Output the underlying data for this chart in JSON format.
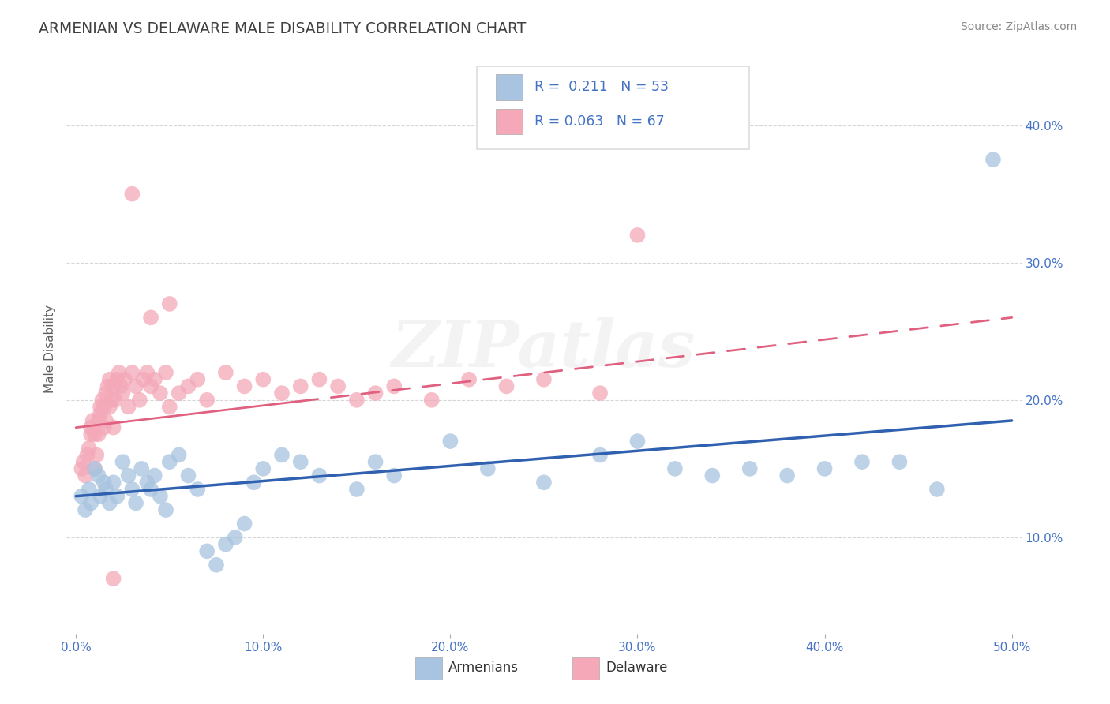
{
  "title": "ARMENIAN VS DELAWARE MALE DISABILITY CORRELATION CHART",
  "source": "Source: ZipAtlas.com",
  "ylabel": "Male Disability",
  "xlim": [
    -0.005,
    0.505
  ],
  "ylim": [
    0.03,
    0.445
  ],
  "xticks": [
    0.0,
    0.1,
    0.2,
    0.3,
    0.4,
    0.5
  ],
  "xtick_labels": [
    "0.0%",
    "10.0%",
    "20.0%",
    "30.0%",
    "40.0%",
    "50.0%"
  ],
  "yticks": [
    0.1,
    0.2,
    0.3,
    0.4
  ],
  "ytick_labels": [
    "10.0%",
    "20.0%",
    "30.0%",
    "40.0%"
  ],
  "blue_R": 0.211,
  "blue_N": 53,
  "pink_R": 0.063,
  "pink_N": 67,
  "legend_labels": [
    "Armenians",
    "Delaware"
  ],
  "blue_color": "#a8c4e0",
  "pink_color": "#f4a8b8",
  "blue_line_color": "#3060b0",
  "pink_line_color": "#e06080",
  "watermark": "ZIPatlas",
  "title_color": "#404040",
  "source_color": "#888888",
  "tick_color": "#4472c4",
  "ylabel_color": "#606060",
  "grid_color": "#cccccc",
  "legend_text_color": "#4472c4",
  "blue_trend_start_y": 0.13,
  "blue_trend_end_y": 0.185,
  "pink_trend_start_y": 0.18,
  "pink_trend_end_y": 0.26,
  "blue_x": [
    0.003,
    0.005,
    0.007,
    0.008,
    0.01,
    0.012,
    0.013,
    0.015,
    0.016,
    0.018,
    0.02,
    0.022,
    0.025,
    0.028,
    0.03,
    0.032,
    0.035,
    0.038,
    0.04,
    0.042,
    0.045,
    0.048,
    0.05,
    0.055,
    0.06,
    0.065,
    0.07,
    0.075,
    0.08,
    0.085,
    0.09,
    0.095,
    0.1,
    0.11,
    0.12,
    0.13,
    0.15,
    0.16,
    0.17,
    0.2,
    0.22,
    0.25,
    0.28,
    0.3,
    0.32,
    0.34,
    0.36,
    0.38,
    0.4,
    0.42,
    0.44,
    0.46,
    0.49
  ],
  "blue_y": [
    0.13,
    0.12,
    0.135,
    0.125,
    0.15,
    0.145,
    0.13,
    0.14,
    0.135,
    0.125,
    0.14,
    0.13,
    0.155,
    0.145,
    0.135,
    0.125,
    0.15,
    0.14,
    0.135,
    0.145,
    0.13,
    0.12,
    0.155,
    0.16,
    0.145,
    0.135,
    0.09,
    0.08,
    0.095,
    0.1,
    0.11,
    0.14,
    0.15,
    0.16,
    0.155,
    0.145,
    0.135,
    0.155,
    0.145,
    0.17,
    0.15,
    0.14,
    0.16,
    0.17,
    0.15,
    0.145,
    0.15,
    0.145,
    0.15,
    0.155,
    0.155,
    0.135,
    0.375
  ],
  "pink_x": [
    0.003,
    0.004,
    0.005,
    0.006,
    0.007,
    0.008,
    0.008,
    0.009,
    0.01,
    0.01,
    0.011,
    0.012,
    0.012,
    0.013,
    0.013,
    0.014,
    0.015,
    0.015,
    0.016,
    0.016,
    0.017,
    0.018,
    0.018,
    0.019,
    0.02,
    0.02,
    0.021,
    0.022,
    0.023,
    0.024,
    0.025,
    0.026,
    0.028,
    0.03,
    0.032,
    0.034,
    0.036,
    0.038,
    0.04,
    0.042,
    0.045,
    0.048,
    0.05,
    0.055,
    0.06,
    0.065,
    0.07,
    0.08,
    0.09,
    0.1,
    0.11,
    0.12,
    0.13,
    0.14,
    0.15,
    0.16,
    0.17,
    0.19,
    0.21,
    0.23,
    0.25,
    0.28,
    0.3,
    0.05,
    0.04,
    0.03,
    0.02
  ],
  "pink_y": [
    0.15,
    0.155,
    0.145,
    0.16,
    0.165,
    0.175,
    0.18,
    0.185,
    0.15,
    0.175,
    0.16,
    0.175,
    0.185,
    0.19,
    0.195,
    0.2,
    0.18,
    0.195,
    0.185,
    0.205,
    0.21,
    0.195,
    0.215,
    0.2,
    0.18,
    0.21,
    0.2,
    0.215,
    0.22,
    0.21,
    0.205,
    0.215,
    0.195,
    0.22,
    0.21,
    0.2,
    0.215,
    0.22,
    0.21,
    0.215,
    0.205,
    0.22,
    0.195,
    0.205,
    0.21,
    0.215,
    0.2,
    0.22,
    0.21,
    0.215,
    0.205,
    0.21,
    0.215,
    0.21,
    0.2,
    0.205,
    0.21,
    0.2,
    0.215,
    0.21,
    0.215,
    0.205,
    0.32,
    0.27,
    0.26,
    0.35,
    0.07
  ]
}
